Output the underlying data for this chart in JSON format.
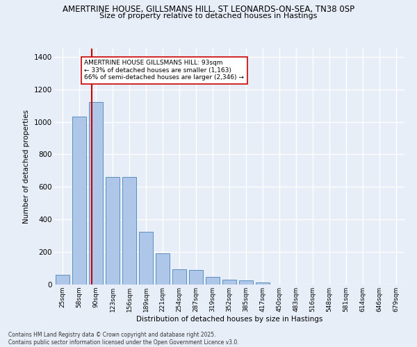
{
  "title_line1": "AMERTRINE HOUSE, GILLSMANS HILL, ST LEONARDS-ON-SEA, TN38 0SP",
  "title_line2": "Size of property relative to detached houses in Hastings",
  "xlabel": "Distribution of detached houses by size in Hastings",
  "ylabel": "Number of detached properties",
  "categories": [
    "25sqm",
    "58sqm",
    "90sqm",
    "123sqm",
    "156sqm",
    "189sqm",
    "221sqm",
    "254sqm",
    "287sqm",
    "319sqm",
    "352sqm",
    "385sqm",
    "417sqm",
    "450sqm",
    "483sqm",
    "516sqm",
    "548sqm",
    "581sqm",
    "614sqm",
    "646sqm",
    "679sqm"
  ],
  "values": [
    60,
    1030,
    1120,
    660,
    660,
    325,
    192,
    92,
    90,
    45,
    28,
    25,
    12,
    0,
    0,
    0,
    0,
    0,
    0,
    0,
    0
  ],
  "bar_color": "#aec6e8",
  "bar_edge_color": "#5a8fc0",
  "red_line_x": 1.75,
  "red_line_color": "#cc0000",
  "annotation_text": "AMERTRINE HOUSE GILLSMANS HILL: 93sqm\n← 33% of detached houses are smaller (1,163)\n66% of semi-detached houses are larger (2,346) →",
  "annotation_box_color": "white",
  "annotation_box_edge_color": "#cc0000",
  "ylim": [
    0,
    1450
  ],
  "yticks": [
    0,
    200,
    400,
    600,
    800,
    1000,
    1200,
    1400
  ],
  "background_color": "#e8eef8",
  "grid_color": "white",
  "footer_line1": "Contains HM Land Registry data © Crown copyright and database right 2025.",
  "footer_line2": "Contains public sector information licensed under the Open Government Licence v3.0."
}
